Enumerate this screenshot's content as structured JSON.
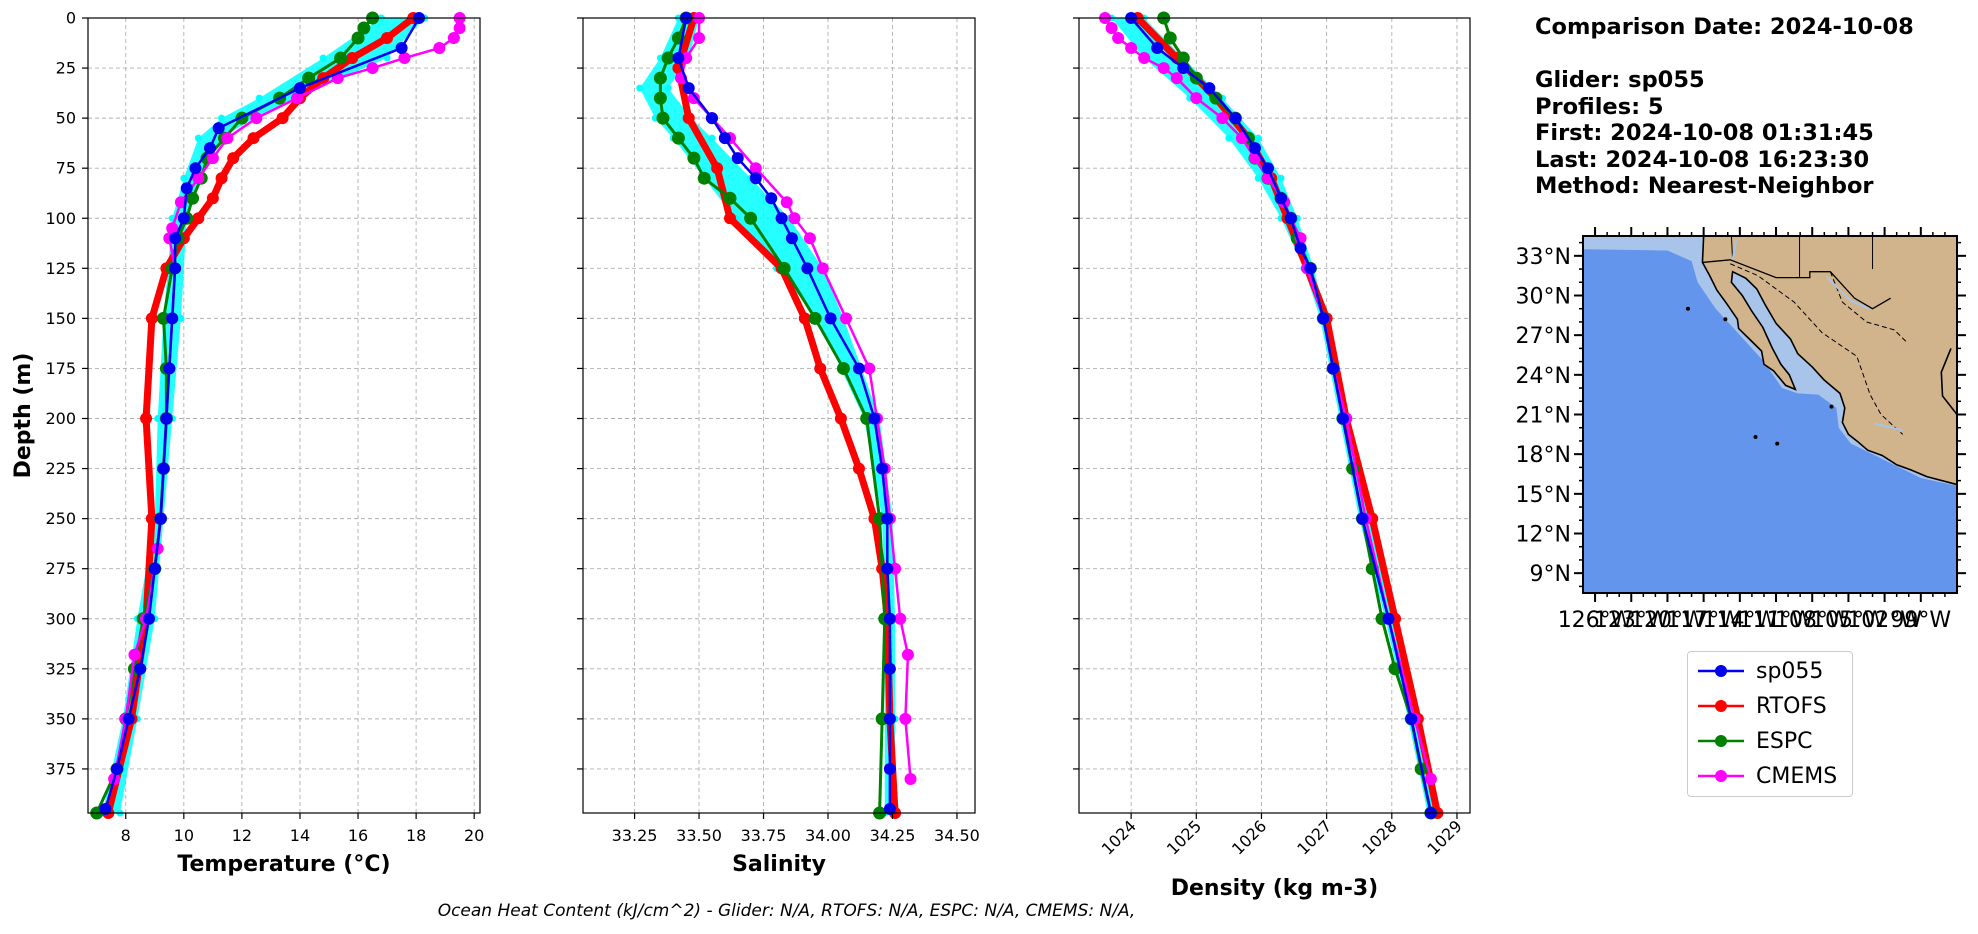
{
  "info": {
    "comparison_date": "Comparison Date: 2024-10-08",
    "glider": "Glider: sp055",
    "profiles": "Profiles: 5",
    "first": "First: 2024-10-08 01:31:45",
    "last": "Last: 2024-10-08 16:23:30",
    "method": "Method: Nearest-Neighbor"
  },
  "footer": "Ocean Heat Content (kJ/cm^2) - Glider: N/A,  RTOFS: N/A,  ESPC: N/A,  CMEMS: N/A,",
  "colors": {
    "sp055": "#0000ee",
    "RTOFS": "#ff0000",
    "ESPC": "#008000",
    "CMEMS": "#ff00ff",
    "glider_raw": "#00ffff",
    "ocean": "#6495ed",
    "shelf": "#a8c4ea",
    "land": "#d2b48c"
  },
  "legend": [
    "sp055",
    "RTOFS",
    "ESPC",
    "CMEMS"
  ],
  "chart_data": [
    {
      "type": "line",
      "xlabel": "Temperature (°C)",
      "ylabel": "Depth (m)",
      "xlim": [
        6.7,
        20.2
      ],
      "ylim": [
        397,
        0
      ],
      "xticks": [
        8,
        10,
        12,
        14,
        16,
        18,
        20
      ],
      "yticks": [
        0,
        25,
        50,
        75,
        100,
        125,
        150,
        175,
        200,
        225,
        250,
        275,
        300,
        325,
        350,
        375
      ],
      "grid": true,
      "series": [
        {
          "name": "sp055",
          "depth": [
            0,
            15,
            35,
            55,
            65,
            75,
            85,
            100,
            110,
            125,
            150,
            175,
            200,
            225,
            250,
            275,
            300,
            325,
            350,
            375,
            395
          ],
          "values": [
            18.1,
            17.5,
            14.0,
            11.2,
            10.9,
            10.4,
            10.1,
            10.0,
            9.7,
            9.7,
            9.6,
            9.5,
            9.4,
            9.3,
            9.2,
            9.0,
            8.8,
            8.5,
            8.1,
            7.7,
            7.3
          ]
        },
        {
          "name": "RTOFS",
          "depth": [
            0,
            10,
            20,
            30,
            40,
            50,
            60,
            70,
            80,
            90,
            100,
            110,
            125,
            150,
            200,
            250,
            300,
            350,
            397
          ],
          "values": [
            17.9,
            17.0,
            15.8,
            14.8,
            14.0,
            13.4,
            12.4,
            11.7,
            11.3,
            11.0,
            10.5,
            10.0,
            9.4,
            8.9,
            8.7,
            8.9,
            8.7,
            8.2,
            7.4
          ]
        },
        {
          "name": "ESPC",
          "depth": [
            0,
            5,
            10,
            20,
            30,
            40,
            50,
            60,
            70,
            80,
            90,
            100,
            110,
            125,
            150,
            175,
            200,
            225,
            250,
            275,
            300,
            325,
            350,
            375,
            397
          ],
          "values": [
            16.5,
            16.2,
            16.0,
            15.4,
            14.3,
            13.3,
            12.0,
            11.4,
            10.8,
            10.6,
            10.3,
            10.1,
            9.8,
            9.6,
            9.3,
            9.4,
            9.4,
            9.3,
            9.2,
            9.0,
            8.6,
            8.3,
            8.0,
            7.7,
            7.0
          ]
        },
        {
          "name": "CMEMS",
          "depth": [
            0,
            5,
            10,
            15,
            20,
            25,
            30,
            40,
            50,
            60,
            70,
            80,
            92,
            105,
            110,
            125,
            150,
            175,
            200,
            225,
            250,
            265,
            300,
            318,
            350,
            380
          ],
          "values": [
            19.5,
            19.5,
            19.3,
            18.8,
            17.6,
            16.5,
            15.3,
            13.9,
            12.5,
            11.5,
            11.0,
            10.5,
            9.9,
            9.6,
            9.5,
            9.7,
            9.6,
            9.5,
            9.4,
            9.3,
            9.2,
            9.1,
            8.7,
            8.3,
            8.0,
            7.6
          ]
        }
      ],
      "raw_band": {
        "name": "glider profiles",
        "depth": [
          0,
          20,
          40,
          50,
          60,
          80,
          100,
          150,
          200,
          250,
          300,
          350,
          397
        ],
        "min": [
          16.8,
          14.8,
          12.6,
          11.3,
          10.5,
          10.0,
          9.6,
          9.3,
          9.1,
          9.0,
          8.4,
          7.9,
          7.2
        ],
        "max": [
          18.3,
          17.0,
          13.8,
          12.4,
          11.3,
          10.6,
          10.1,
          9.9,
          9.6,
          9.3,
          9.0,
          8.4,
          7.8
        ]
      }
    },
    {
      "type": "line",
      "xlabel": "Salinity",
      "xlim": [
        33.05,
        34.57
      ],
      "ylim": [
        397,
        0
      ],
      "xticks": [
        33.25,
        33.5,
        33.75,
        34.0,
        34.25,
        34.5
      ],
      "xtick_labels": [
        "33.25",
        "33.50",
        "33.75",
        "34.00",
        "34.25",
        "34.50"
      ],
      "grid": true,
      "series": [
        {
          "name": "sp055",
          "depth": [
            0,
            20,
            35,
            50,
            60,
            70,
            80,
            90,
            100,
            110,
            125,
            150,
            175,
            200,
            225,
            250,
            275,
            300,
            325,
            350,
            375,
            395
          ],
          "values": [
            33.45,
            33.42,
            33.46,
            33.55,
            33.6,
            33.65,
            33.72,
            33.78,
            33.82,
            33.86,
            33.92,
            34.01,
            34.12,
            34.18,
            34.21,
            34.23,
            34.23,
            34.24,
            34.24,
            34.24,
            34.24,
            34.24
          ]
        },
        {
          "name": "RTOFS",
          "depth": [
            0,
            25,
            50,
            75,
            100,
            125,
            150,
            175,
            200,
            225,
            250,
            275,
            300,
            350,
            397
          ],
          "values": [
            33.48,
            33.42,
            33.46,
            33.57,
            33.62,
            33.82,
            33.91,
            33.97,
            34.05,
            34.12,
            34.18,
            34.21,
            34.23,
            34.24,
            34.26
          ]
        },
        {
          "name": "ESPC",
          "depth": [
            0,
            10,
            20,
            30,
            40,
            50,
            60,
            70,
            80,
            90,
            100,
            125,
            150,
            175,
            200,
            250,
            300,
            350,
            397
          ],
          "values": [
            33.45,
            33.42,
            33.38,
            33.35,
            33.35,
            33.36,
            33.42,
            33.48,
            33.52,
            33.62,
            33.7,
            33.83,
            33.95,
            34.06,
            34.15,
            34.2,
            34.22,
            34.21,
            34.2
          ]
        },
        {
          "name": "CMEMS",
          "depth": [
            0,
            10,
            20,
            30,
            40,
            50,
            60,
            75,
            92,
            100,
            110,
            125,
            150,
            175,
            200,
            225,
            250,
            275,
            300,
            318,
            350,
            380
          ],
          "values": [
            33.5,
            33.5,
            33.45,
            33.43,
            33.48,
            33.55,
            33.62,
            33.72,
            33.84,
            33.87,
            33.93,
            33.98,
            34.07,
            34.16,
            34.19,
            34.22,
            34.24,
            34.26,
            34.28,
            34.31,
            34.3,
            34.32
          ]
        }
      ],
      "raw_band": {
        "name": "glider profiles",
        "depth": [
          0,
          20,
          35,
          50,
          60,
          80,
          100,
          125,
          150,
          200,
          250,
          300,
          350,
          397
        ],
        "min": [
          33.42,
          33.35,
          33.27,
          33.33,
          33.4,
          33.52,
          33.64,
          33.8,
          33.96,
          34.14,
          34.21,
          34.22,
          34.22,
          34.22
        ],
        "max": [
          33.5,
          33.46,
          33.38,
          33.47,
          33.55,
          33.7,
          33.85,
          33.98,
          34.06,
          34.2,
          34.25,
          34.26,
          34.26,
          34.26
        ]
      }
    },
    {
      "type": "line",
      "xlabel": "Density (kg m-3)",
      "xlim": [
        1023.2,
        1029.2
      ],
      "ylim": [
        397,
        0
      ],
      "xticks": [
        1024,
        1025,
        1026,
        1027,
        1028,
        1029
      ],
      "grid": true,
      "series": [
        {
          "name": "sp055",
          "depth": [
            0,
            15,
            25,
            35,
            50,
            65,
            75,
            90,
            100,
            115,
            125,
            150,
            175,
            200,
            250,
            300,
            350,
            397
          ],
          "values": [
            1024.0,
            1024.4,
            1024.8,
            1025.2,
            1025.6,
            1025.9,
            1026.1,
            1026.3,
            1026.45,
            1026.6,
            1026.75,
            1026.95,
            1027.1,
            1027.25,
            1027.55,
            1027.95,
            1028.3,
            1028.6
          ]
        },
        {
          "name": "RTOFS",
          "depth": [
            0,
            20,
            40,
            60,
            80,
            100,
            125,
            150,
            200,
            250,
            300,
            350,
            397
          ],
          "values": [
            1024.1,
            1024.7,
            1025.3,
            1025.8,
            1026.15,
            1026.4,
            1026.7,
            1027.0,
            1027.3,
            1027.7,
            1028.05,
            1028.4,
            1028.7
          ]
        },
        {
          "name": "ESPC",
          "depth": [
            0,
            10,
            20,
            30,
            40,
            50,
            60,
            70,
            80,
            90,
            100,
            110,
            125,
            150,
            175,
            200,
            225,
            250,
            275,
            300,
            325,
            350,
            375,
            397
          ],
          "values": [
            1024.5,
            1024.6,
            1024.8,
            1025.0,
            1025.3,
            1025.6,
            1025.8,
            1025.9,
            1026.1,
            1026.3,
            1026.45,
            1026.55,
            1026.75,
            1026.95,
            1027.1,
            1027.25,
            1027.4,
            1027.55,
            1027.7,
            1027.85,
            1028.05,
            1028.3,
            1028.45,
            1028.6
          ]
        },
        {
          "name": "CMEMS",
          "depth": [
            0,
            5,
            10,
            15,
            20,
            25,
            30,
            40,
            50,
            60,
            70,
            80,
            92,
            100,
            110,
            125,
            150,
            175,
            200,
            250,
            300,
            350,
            380
          ],
          "values": [
            1023.6,
            1023.7,
            1023.8,
            1024.0,
            1024.2,
            1024.5,
            1024.7,
            1025.0,
            1025.4,
            1025.7,
            1025.9,
            1026.1,
            1026.35,
            1026.45,
            1026.6,
            1026.7,
            1026.95,
            1027.1,
            1027.3,
            1027.6,
            1027.95,
            1028.35,
            1028.6
          ]
        }
      ],
      "raw_band": {
        "name": "glider profiles",
        "depth": [
          0,
          20,
          40,
          60,
          80,
          100,
          125,
          150,
          200,
          250,
          300,
          350,
          397
        ],
        "min": [
          1023.7,
          1024.2,
          1024.9,
          1025.5,
          1025.95,
          1026.3,
          1026.65,
          1026.9,
          1027.2,
          1027.5,
          1027.9,
          1028.25,
          1028.55
        ],
        "max": [
          1024.2,
          1024.8,
          1025.4,
          1025.95,
          1026.3,
          1026.55,
          1026.8,
          1027.0,
          1027.3,
          1027.65,
          1028.0,
          1028.35,
          1028.65
        ]
      }
    },
    {
      "type": "map",
      "lat_ticks": [
        "33°N",
        "30°N",
        "27°N",
        "24°N",
        "21°N",
        "18°N",
        "15°N",
        "12°N",
        "9°N"
      ],
      "lon_ticks": [
        "126°W",
        "123°W",
        "120°W",
        "117°W",
        "114°W",
        "111°W",
        "108°W",
        "105°W",
        "102°W",
        "99°W"
      ],
      "lat_range": [
        7.5,
        34.5
      ],
      "lon_range": [
        -127,
        -96
      ]
    }
  ]
}
